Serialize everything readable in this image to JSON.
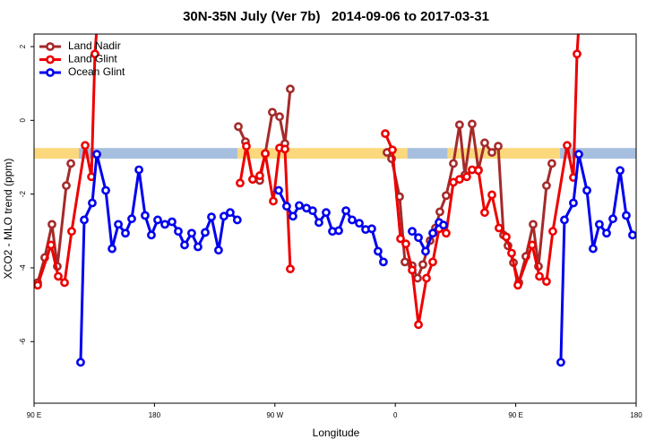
{
  "chart_data": {
    "type": "line",
    "title": "30N-35N July (Ver 7b)   2014-09-06 to 2017-03-31",
    "x_label": "Longitude",
    "y_label": "XCO2 - MLO trend (ppm)",
    "xlim": [
      90,
      540
    ],
    "ylim": [
      -7.67,
      2.34
    ],
    "xticks": [
      {
        "value": 90,
        "label": "90 E"
      },
      {
        "value": 180,
        "label": "180"
      },
      {
        "value": 270,
        "label": "90 W"
      },
      {
        "value": 360,
        "label": "0"
      },
      {
        "value": 450,
        "label": "90 E"
      },
      {
        "value": 540,
        "label": "180"
      }
    ],
    "yticks": [
      2,
      0,
      -2,
      -4,
      -6
    ],
    "legend": "top-left",
    "band": {
      "range": [
        -0.75,
        -1.04
      ],
      "segments": [
        {
          "from": 90,
          "to": 123.5,
          "color": "#fbd87c"
        },
        {
          "from": 123.5,
          "to": 242,
          "color": "#a7bfdf"
        },
        {
          "from": 242,
          "to": 369,
          "color": "#fbd87c"
        },
        {
          "from": 369,
          "to": 399,
          "color": "#a7bfdf"
        },
        {
          "from": 399,
          "to": 483,
          "color": "#fbd87c"
        },
        {
          "from": 483,
          "to": 540,
          "color": "#a7bfdf"
        }
      ]
    },
    "series": [
      {
        "name": "Land Nadir",
        "color": "#a52a2a",
        "x": [
          92.7,
          98,
          103.4,
          107.4,
          114.1,
          117.5,
          null,
          242.7,
          248,
          253.4,
          258.7,
          262.8,
          268.1,
          273.5,
          277.5,
          281.5,
          null,
          353.8,
          357.2,
          363.2,
          367.2,
          372.6,
          376.6,
          380.6,
          386,
          390,
          393.3,
          398,
          403.4,
          408,
          412,
          417.4,
          422.1,
          426.8,
          432.2,
          436.9,
          440.9,
          444.2,
          448.3,
          452.3,
          457.6,
          463,
          467,
          473,
          477
        ],
        "values": [
          -4.4,
          -3.72,
          -2.82,
          -3.96,
          -1.77,
          -1.17,
          null,
          -0.17,
          -0.58,
          -1.6,
          -1.63,
          -0.9,
          0.22,
          0.1,
          -0.63,
          0.85,
          null,
          -0.87,
          -1.04,
          -2.07,
          -3.84,
          -3.94,
          -4.28,
          -3.91,
          -3.26,
          -2.92,
          -2.48,
          -2.04,
          -1.17,
          -0.12,
          -1.48,
          -0.1,
          -1.34,
          -0.61,
          -0.87,
          -0.7,
          -3.11,
          -3.4,
          -3.86,
          -4.4,
          -3.69,
          -2.82,
          -3.96,
          -1.77,
          -1.17
        ]
      },
      {
        "name": "Land Glint",
        "color": "#ee0000",
        "x": [
          92.7,
          102.7,
          108.1,
          112.8,
          118.1,
          128.2,
          132.9,
          135.5,
          136.9,
          null,
          244,
          248.7,
          253.4,
          258.7,
          262.8,
          268.8,
          273.5,
          277.5,
          281.5,
          null,
          352.5,
          357.8,
          363.9,
          367.9,
          372.6,
          377.3,
          383.3,
          388,
          392.7,
          398,
          403.4,
          408,
          413.4,
          417.4,
          422.1,
          426.8,
          432.2,
          437.5,
          442.9,
          446.9,
          451.6,
          462.3,
          467.7,
          473,
          477.7,
          488.4,
          493.1,
          495.8,
          497
        ],
        "values": [
          -4.47,
          -3.38,
          -4.23,
          -4.4,
          -3.01,
          -0.68,
          -1.53,
          1.8,
          2.5,
          null,
          -1.7,
          -0.7,
          -1.6,
          -1.5,
          -0.9,
          -2.19,
          -0.75,
          -0.78,
          -4.03,
          null,
          -0.36,
          -0.8,
          -3.21,
          -3.35,
          -4.06,
          -5.54,
          -4.28,
          -3.84,
          -2.94,
          -3.06,
          -1.68,
          -1.6,
          -1.53,
          -1.34,
          -1.36,
          -2.5,
          -2.02,
          -2.92,
          -3.16,
          -3.6,
          -4.47,
          -3.38,
          -4.23,
          -4.37,
          -3.01,
          -0.68,
          -1.55,
          1.8,
          2.5
        ]
      },
      {
        "name": "Ocean Glint",
        "color": "#0000ee",
        "x": [
          124.8,
          127.5,
          133.5,
          136.9,
          143.6,
          148.3,
          153,
          158.3,
          163,
          168.4,
          173,
          177.7,
          182.4,
          187.8,
          193.1,
          197.8,
          202.5,
          207.8,
          212.5,
          217.9,
          222.6,
          227.9,
          231.9,
          236.6,
          241.9,
          null,
          272.8,
          278.8,
          283.5,
          288.2,
          293.6,
          298.2,
          302.9,
          308.3,
          313,
          317.7,
          323.1,
          327.7,
          333.1,
          337.8,
          342.4,
          347.1,
          351.1,
          null,
          372.6,
          377.3,
          382.6,
          388,
          392.7,
          396,
          null,
          483.7,
          486.4,
          493.1,
          497.1,
          503.2,
          507.8,
          512.5,
          517.9,
          522.6,
          528,
          532.6,
          537.3
        ],
        "values": [
          -6.56,
          -2.7,
          -2.24,
          -0.92,
          -1.9,
          -3.48,
          -2.82,
          -3.06,
          -2.67,
          -1.34,
          -2.58,
          -3.11,
          -2.7,
          -2.82,
          -2.75,
          -3.01,
          -3.38,
          -3.06,
          -3.43,
          -3.04,
          -2.62,
          -3.52,
          -2.6,
          -2.5,
          -2.7,
          null,
          -1.9,
          -2.33,
          -2.6,
          -2.31,
          -2.38,
          -2.45,
          -2.77,
          -2.5,
          -3.01,
          -2.99,
          -2.45,
          -2.7,
          -2.79,
          -2.96,
          -2.94,
          -3.55,
          -3.84,
          null,
          -3.01,
          -3.18,
          -3.55,
          -3.06,
          -2.77,
          -2.84,
          null,
          -6.56,
          -2.7,
          -2.24,
          -0.92,
          -1.9,
          -3.48,
          -2.82,
          -3.06,
          -2.67,
          -1.36,
          -2.58,
          -3.11
        ]
      }
    ]
  }
}
